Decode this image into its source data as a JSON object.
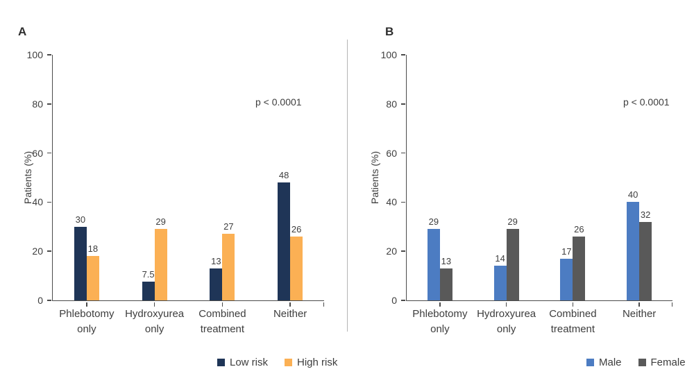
{
  "figure": {
    "colors": {
      "low_risk": "#1F3557",
      "high_risk": "#FBB054",
      "male": "#4C7CC2",
      "female": "#595959",
      "axis": "#4a4a4a",
      "text": "#3d3d3d"
    }
  },
  "chart_data": [
    {
      "type": "bar",
      "panel_label": "A",
      "title": "",
      "ylabel": "Patients (%)",
      "xlabel": "",
      "ylim": [
        0,
        100
      ],
      "yticks": [
        0,
        20,
        40,
        60,
        80,
        100
      ],
      "grid": false,
      "annotation": "p < 0.0001",
      "legend_position": "bottom",
      "categories": [
        "Phlebotomy\nonly",
        "Hydroxyurea\nonly",
        "Combined\ntreatment",
        "Neither"
      ],
      "series": [
        {
          "name": "Low risk",
          "color": "#1F3557",
          "values": [
            30,
            7.5,
            13,
            48
          ]
        },
        {
          "name": "High risk",
          "color": "#FBB054",
          "values": [
            18,
            29,
            27,
            26
          ]
        }
      ]
    },
    {
      "type": "bar",
      "panel_label": "B",
      "title": "",
      "ylabel": "Patients (%)",
      "xlabel": "",
      "ylim": [
        0,
        100
      ],
      "yticks": [
        0,
        20,
        40,
        60,
        80,
        100
      ],
      "grid": false,
      "annotation": "p < 0.0001",
      "legend_position": "bottom",
      "categories": [
        "Phlebotomy\nonly",
        "Hydroxyurea\nonly",
        "Combined\ntreatment",
        "Neither"
      ],
      "series": [
        {
          "name": "Male",
          "color": "#4C7CC2",
          "values": [
            29,
            14,
            17,
            40
          ]
        },
        {
          "name": "Female",
          "color": "#595959",
          "values": [
            13,
            29,
            26,
            32
          ]
        }
      ]
    }
  ]
}
